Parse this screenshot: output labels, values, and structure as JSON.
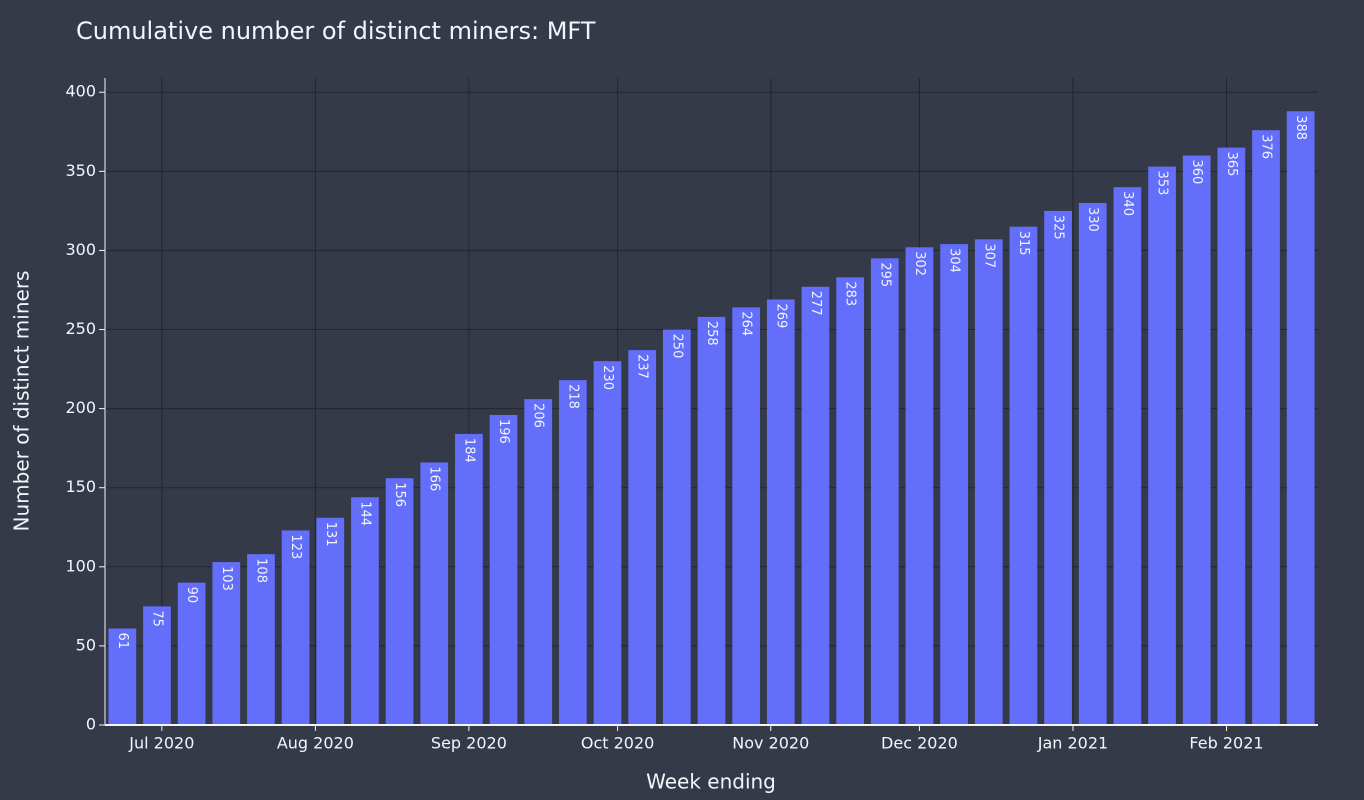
{
  "chart_data": {
    "type": "bar",
    "title": "Cumulative number of distinct miners: MFT",
    "x_label": "Week ending",
    "y_label": "Number of distinct miners",
    "categories": [
      null,
      null,
      null,
      null,
      null,
      null,
      null,
      null,
      null,
      null,
      null,
      null,
      null,
      null,
      null,
      null,
      null,
      null,
      null,
      null,
      null,
      null,
      null,
      null,
      null,
      null,
      null,
      null,
      null,
      null,
      null,
      null,
      null,
      null,
      null
    ],
    "values": [
      61,
      75,
      90,
      103,
      108,
      123,
      131,
      144,
      156,
      166,
      184,
      196,
      206,
      218,
      230,
      237,
      250,
      258,
      264,
      269,
      277,
      283,
      295,
      302,
      304,
      307,
      315,
      325,
      330,
      340,
      353,
      360,
      365,
      376,
      388
    ],
    "color": "#636efa",
    "xlim": [
      -0.5,
      34.5
    ],
    "xticks": [
      {
        "value": 1.14,
        "label": "Jul 2020"
      },
      {
        "value": 5.57,
        "label": "Aug 2020"
      },
      {
        "value": 10,
        "label": "Sep 2020"
      },
      {
        "value": 14.29,
        "label": "Oct 2020"
      },
      {
        "value": 18.71,
        "label": "Nov 2020"
      },
      {
        "value": 23,
        "label": "Dec 2020"
      },
      {
        "value": 27.43,
        "label": "Jan 2021"
      },
      {
        "value": 31.86,
        "label": "Feb 2021"
      }
    ],
    "ylim": [
      0,
      409
    ],
    "yticks": [
      0,
      50,
      100,
      150,
      200,
      250,
      300,
      350,
      400
    ],
    "grid": true
  }
}
